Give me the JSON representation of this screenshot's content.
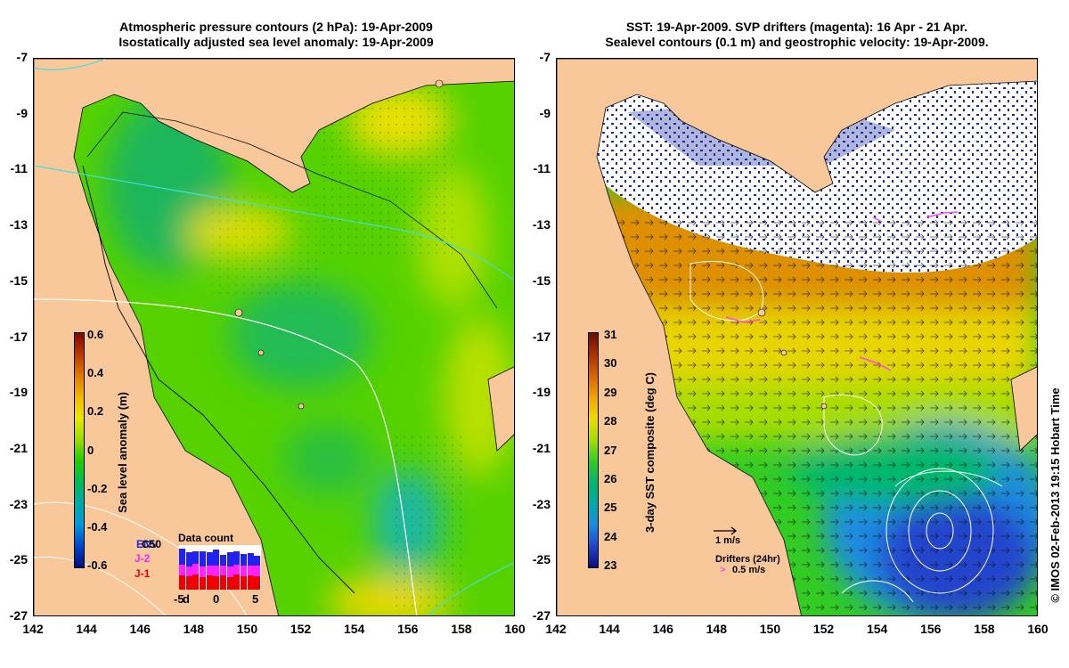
{
  "left_panel": {
    "title_line1": "Atmospheric pressure contours (2 hPa): 19-Apr-2009",
    "title_line2": "Isostatically adjusted sea level anomaly: 19-Apr-2009",
    "colorbar": {
      "label": "Sea level anomaly (m)",
      "ticks": [
        "0.6",
        "0.4",
        "0.2",
        "0",
        "-0.2",
        "-0.4",
        "-0.6"
      ],
      "colors": [
        "#7a0a00",
        "#b83a00",
        "#e07a00",
        "#f2b800",
        "#e8e800",
        "#99dd00",
        "#22cc00",
        "#00bb55",
        "#00aaaa",
        "#0099dd",
        "#0044cc",
        "#000a80"
      ]
    },
    "data_count": {
      "title": "Data count",
      "satellites": [
        "ENV",
        "C50",
        "J-2",
        "J-1"
      ],
      "satellite_colors": [
        "#2222ee",
        "#000000",
        "#ff22ff",
        "#ee0000"
      ],
      "axis_ticks": [
        "-5",
        "0",
        "5"
      ],
      "axis_suffix": "d"
    }
  },
  "right_panel": {
    "title_line1": "SST: 19-Apr-2009. SVP drifters (magenta): 16 Apr - 21 Apr.",
    "title_line2": "Sealevel contours (0.1 m) and geostrophic velocity: 19-Apr-2009.",
    "colorbar": {
      "label": "3-day SST composite (deg C)",
      "ticks": [
        "31",
        "30",
        "29",
        "28",
        "27",
        "26",
        "25",
        "24",
        "23"
      ],
      "colors": [
        "#6a0e00",
        "#a83200",
        "#d86400",
        "#eea400",
        "#eedc00",
        "#a8dd00",
        "#33cc22",
        "#00b86a",
        "#00aaaa",
        "#1a8ce0",
        "#2244cc",
        "#0a0a80"
      ]
    },
    "velocity_legend": "1 m/s",
    "drifters_legend_title": "Drifters (24hr)",
    "drifters_legend_speed": "0.5 m/s",
    "drifter_marker": ">"
  },
  "axes": {
    "y_ticks": [
      "-7",
      "-9",
      "-11",
      "-13",
      "-15",
      "-17",
      "-19",
      "-21",
      "-23",
      "-25",
      "-27"
    ],
    "x_ticks": [
      "142",
      "144",
      "146",
      "148",
      "150",
      "152",
      "154",
      "156",
      "158",
      "160"
    ]
  },
  "credit": "© IMOS 02-Feb-2013 19:15 Hobart Time",
  "colors": {
    "land": "#f8c79a",
    "ocean_green": "#55d200",
    "contour_white": "#ffffff",
    "contour_cyan": "#44dddd",
    "drifter_magenta": "#ff44ff"
  }
}
